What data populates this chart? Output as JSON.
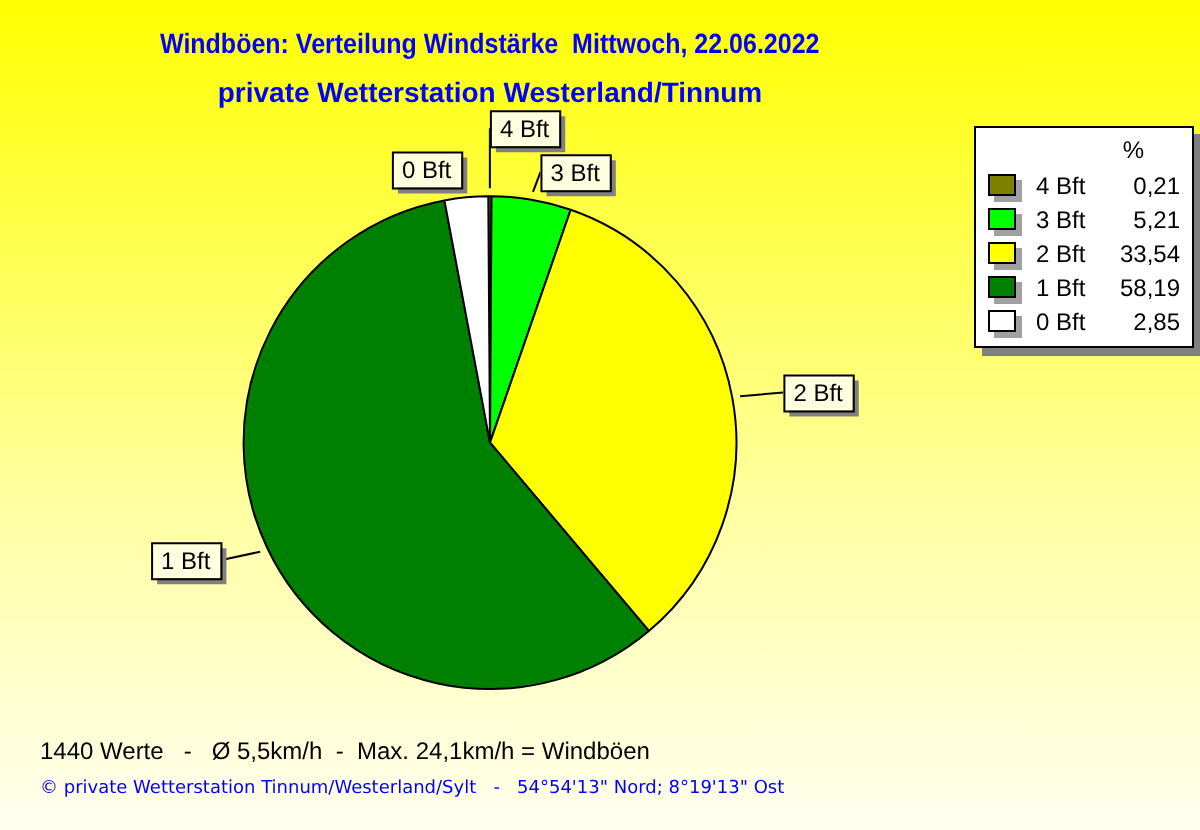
{
  "chart_data": {
    "type": "pie",
    "title": "Windböen: Verteilung Windstärke  Mittwoch, 22.06.2022",
    "subtitle": "private Wetterstation Westerland/Tinnum",
    "legend_title": "%",
    "categories": [
      "4 Bft",
      "3 Bft",
      "2 Bft",
      "1 Bft",
      "0 Bft"
    ],
    "values": [
      0.21,
      5.21,
      33.54,
      58.19,
      2.85
    ],
    "value_labels": [
      "0,21",
      "5,21",
      "33,54",
      "58,19",
      "2,85"
    ],
    "colors": [
      "#808000",
      "#00ff00",
      "#ffff00",
      "#008000",
      "#ffffff"
    ],
    "legend": "top right",
    "data_labels": true,
    "annotations": [
      "1440 Werte   -   Ø 5,5km/h  -  Max. 24,1km/h = Windböen",
      "© private Wetterstation Tinnum/Westerland/Sylt   -   54°54'13\" Nord; 8°19'13\" Ost"
    ]
  }
}
